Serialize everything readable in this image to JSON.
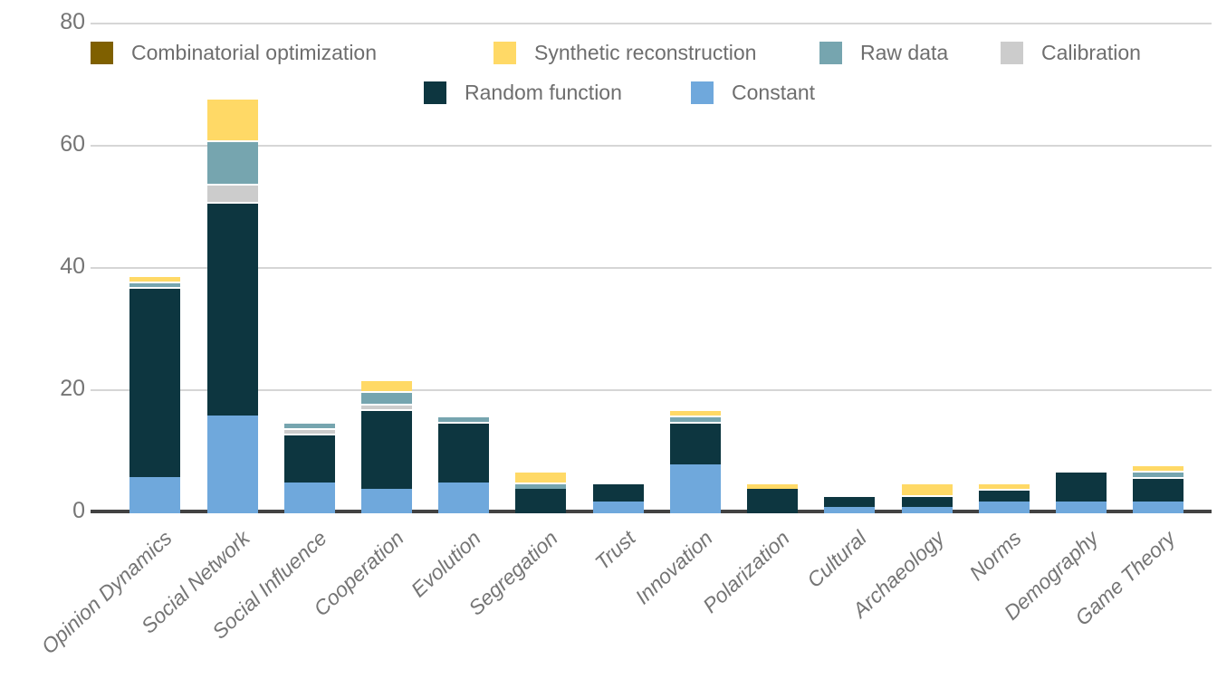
{
  "chart_data": {
    "type": "bar",
    "stacked": true,
    "title": "",
    "xlabel": "",
    "ylabel": "",
    "y_ticks": [
      0,
      20,
      40,
      60,
      80
    ],
    "ylim": [
      0,
      80
    ],
    "grid": true,
    "legend_position": "top",
    "categories": [
      "Opinion Dynamics",
      "Social Network",
      "Social Influence",
      "Cooperation",
      "Evolution",
      "Segregation",
      "Trust",
      "Innovation",
      "Polarization",
      "Cultural",
      "Archaeology",
      "Norms",
      "Demography",
      "Game Theory"
    ],
    "series": [
      {
        "name": "Constant",
        "color": "#6fa8dc",
        "values": [
          6,
          16,
          5,
          4,
          5,
          0,
          2,
          8,
          0,
          1,
          1,
          2,
          2,
          2
        ]
      },
      {
        "name": "Random function",
        "color": "#0d3640",
        "values": [
          31,
          35,
          8,
          13,
          10,
          4,
          3,
          7,
          4,
          2,
          2,
          2,
          5,
          4
        ]
      },
      {
        "name": "Calibration",
        "color": "#cccccc",
        "values": [
          0,
          3,
          1,
          1,
          0,
          0,
          0,
          0,
          0,
          0,
          0,
          0,
          0,
          0
        ]
      },
      {
        "name": "Raw data",
        "color": "#76a5af",
        "values": [
          1,
          7,
          1,
          2,
          1,
          1,
          0,
          1,
          0,
          0,
          0,
          0,
          0,
          1
        ]
      },
      {
        "name": "Synthetic reconstruction",
        "color": "#ffd966",
        "values": [
          1,
          7,
          0,
          2,
          0,
          2,
          0,
          1,
          1,
          0,
          2,
          1,
          0,
          1
        ]
      },
      {
        "name": "Combinatorial optimization",
        "color": "#7f6000",
        "values": [
          0,
          0,
          0,
          0,
          0,
          0,
          0,
          0,
          0,
          0,
          0,
          0,
          0,
          0
        ]
      }
    ],
    "totals": [
      39,
      68,
      15,
      22,
      16,
      7,
      5,
      17,
      5,
      3,
      5,
      5,
      7,
      8
    ],
    "legend": [
      {
        "label": "Combinatorial optimization",
        "color": "#7f6000"
      },
      {
        "label": "Synthetic reconstruction",
        "color": "#ffd966"
      },
      {
        "label": "Raw data",
        "color": "#76a5af"
      },
      {
        "label": "Calibration",
        "color": "#cccccc"
      },
      {
        "label": "Random function",
        "color": "#0d3640"
      },
      {
        "label": "Constant",
        "color": "#6fa8dc"
      }
    ],
    "colors": {
      "axis_text": "#757575",
      "legend_text": "#6e6e6e",
      "gridline": "#d6d6d6",
      "baseline": "#424242",
      "background": "#ffffff"
    }
  }
}
